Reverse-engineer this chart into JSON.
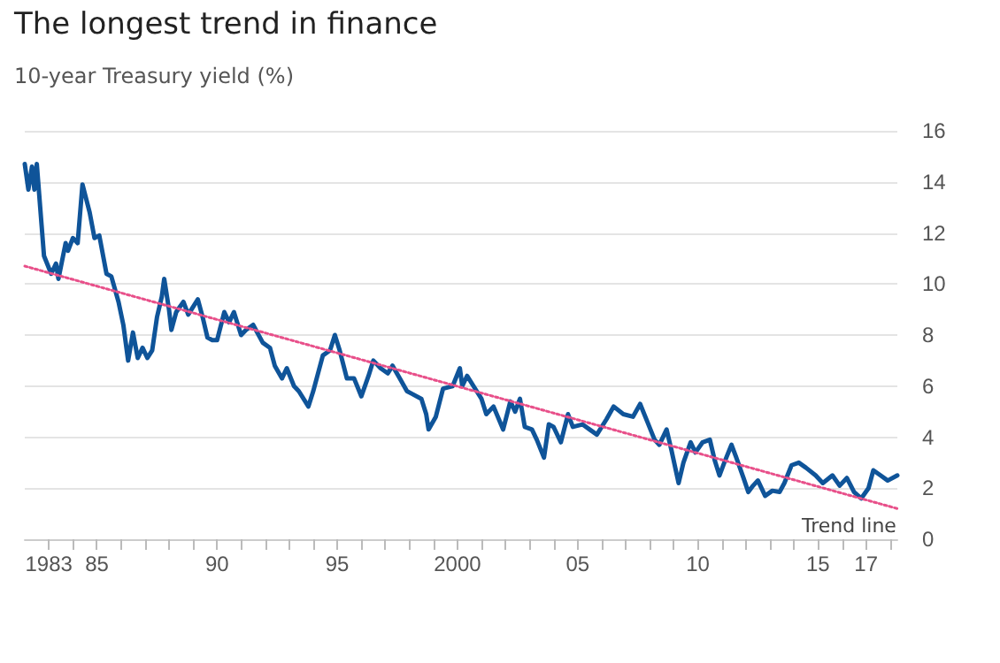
{
  "chart_data": {
    "type": "line",
    "title": "The longest trend in finance",
    "subtitle": "10-year Treasury yield (%)",
    "xlim": [
      1982,
      2018.3
    ],
    "xticks": [
      {
        "value": 1983,
        "label": "1983"
      },
      {
        "value": 1984,
        "label": null
      },
      {
        "value": 1985,
        "label": "85"
      },
      {
        "value": 1986,
        "label": null
      },
      {
        "value": 1987,
        "label": null
      },
      {
        "value": 1988,
        "label": null
      },
      {
        "value": 1989,
        "label": null
      },
      {
        "value": 1990,
        "label": "90"
      },
      {
        "value": 1991,
        "label": null
      },
      {
        "value": 1992,
        "label": null
      },
      {
        "value": 1993,
        "label": null
      },
      {
        "value": 1994,
        "label": null
      },
      {
        "value": 1995,
        "label": "95"
      },
      {
        "value": 1996,
        "label": null
      },
      {
        "value": 1997,
        "label": null
      },
      {
        "value": 1998,
        "label": null
      },
      {
        "value": 1999,
        "label": null
      },
      {
        "value": 2000,
        "label": "2000"
      },
      {
        "value": 2001,
        "label": null
      },
      {
        "value": 2002,
        "label": null
      },
      {
        "value": 2003,
        "label": null
      },
      {
        "value": 2004,
        "label": null
      },
      {
        "value": 2005,
        "label": "05"
      },
      {
        "value": 2006,
        "label": null
      },
      {
        "value": 2007,
        "label": null
      },
      {
        "value": 2008,
        "label": null
      },
      {
        "value": 2009,
        "label": null
      },
      {
        "value": 2010,
        "label": "10"
      },
      {
        "value": 2011,
        "label": null
      },
      {
        "value": 2012,
        "label": null
      },
      {
        "value": 2013,
        "label": null
      },
      {
        "value": 2014,
        "label": null
      },
      {
        "value": 2015,
        "label": "15"
      },
      {
        "value": 2016,
        "label": null
      },
      {
        "value": 2017,
        "label": "17"
      },
      {
        "value": 2018,
        "label": null
      }
    ],
    "ylim": [
      0,
      16
    ],
    "yticks": [
      0,
      2,
      4,
      6,
      8,
      10,
      12,
      14,
      16
    ],
    "grid": "y",
    "marker": "none",
    "series": [
      {
        "color": "#0f5499",
        "line_style": "solid",
        "x": [
          1982.0,
          1982.15,
          1982.3,
          1982.4,
          1982.5,
          1982.6,
          1982.7,
          1982.8,
          1983.1,
          1983.3,
          1983.4,
          1983.7,
          1983.8,
          1984.0,
          1984.2,
          1984.4,
          1984.7,
          1984.9,
          1985.1,
          1985.4,
          1985.6,
          1985.9,
          1986.1,
          1986.3,
          1986.5,
          1986.7,
          1986.9,
          1987.1,
          1987.3,
          1987.5,
          1987.7,
          1987.8,
          1988.0,
          1988.1,
          1988.3,
          1988.6,
          1988.8,
          1989.2,
          1989.4,
          1989.6,
          1989.8,
          1990.0,
          1990.3,
          1990.5,
          1990.7,
          1991.0,
          1991.2,
          1991.5,
          1991.9,
          1992.2,
          1992.4,
          1992.7,
          1992.9,
          1993.2,
          1993.4,
          1993.8,
          1994.0,
          1994.4,
          1994.7,
          1994.9,
          1995.1,
          1995.4,
          1995.7,
          1996.0,
          1996.3,
          1996.5,
          1996.8,
          1997.1,
          1997.3,
          1997.6,
          1997.9,
          1998.1,
          1998.5,
          1998.7,
          1998.8,
          1999.1,
          1999.4,
          1999.8,
          2000.1,
          2000.2,
          2000.4,
          2000.8,
          2001.0,
          2001.2,
          2001.5,
          2001.9,
          2002.2,
          2002.4,
          2002.6,
          2002.8,
          2003.1,
          2003.3,
          2003.6,
          2003.8,
          2004.0,
          2004.3,
          2004.6,
          2004.8,
          2005.2,
          2005.5,
          2005.8,
          2006.2,
          2006.5,
          2006.9,
          2007.3,
          2007.6,
          2007.9,
          2008.2,
          2008.4,
          2008.7,
          2008.9,
          2009.2,
          2009.4,
          2009.7,
          2009.9,
          2010.2,
          2010.5,
          2010.7,
          2010.9,
          2011.1,
          2011.4,
          2011.6,
          2011.9,
          2012.1,
          2012.3,
          2012.5,
          2012.8,
          2013.1,
          2013.4,
          2013.6,
          2013.9,
          2014.2,
          2014.5,
          2014.9,
          2015.2,
          2015.6,
          2015.9,
          2016.2,
          2016.5,
          2016.8,
          2017.1,
          2017.3,
          2017.6,
          2017.9,
          2018.3
        ],
        "values": [
          14.7,
          13.7,
          14.6,
          13.7,
          14.7,
          13.5,
          12.3,
          11.1,
          10.4,
          10.8,
          10.2,
          11.6,
          11.3,
          11.8,
          11.6,
          13.9,
          12.8,
          11.8,
          11.9,
          10.4,
          10.3,
          9.3,
          8.4,
          7.0,
          8.1,
          7.1,
          7.5,
          7.1,
          7.4,
          8.7,
          9.5,
          10.2,
          9.0,
          8.2,
          8.9,
          9.3,
          8.8,
          9.4,
          8.7,
          7.9,
          7.8,
          7.8,
          8.9,
          8.5,
          8.9,
          8.0,
          8.2,
          8.4,
          7.7,
          7.5,
          6.8,
          6.3,
          6.7,
          6.0,
          5.8,
          5.2,
          5.8,
          7.2,
          7.4,
          8.0,
          7.4,
          6.3,
          6.3,
          5.6,
          6.4,
          7.0,
          6.7,
          6.5,
          6.8,
          6.3,
          5.8,
          5.7,
          5.5,
          4.9,
          4.3,
          4.8,
          5.9,
          6.0,
          6.7,
          6.0,
          6.4,
          5.8,
          5.5,
          4.9,
          5.2,
          4.3,
          5.4,
          5.0,
          5.5,
          4.4,
          4.3,
          3.9,
          3.2,
          4.5,
          4.4,
          3.8,
          4.9,
          4.4,
          4.5,
          4.3,
          4.1,
          4.7,
          5.2,
          4.9,
          4.8,
          5.3,
          4.6,
          3.9,
          3.7,
          4.3,
          3.5,
          2.2,
          3.0,
          3.8,
          3.4,
          3.8,
          3.9,
          3.1,
          2.5,
          3.0,
          3.7,
          3.2,
          2.4,
          1.85,
          2.1,
          2.3,
          1.7,
          1.9,
          1.85,
          2.2,
          2.9,
          3.0,
          2.8,
          2.5,
          2.2,
          2.5,
          2.1,
          2.4,
          1.85,
          1.6,
          2.0,
          2.7,
          2.5,
          2.3,
          2.5
        ]
      },
      {
        "name": "Trend line",
        "color": "#e8508a",
        "line_style": "dotted",
        "x": [
          1982,
          2018.3
        ],
        "values": [
          10.7,
          1.2
        ]
      }
    ]
  }
}
